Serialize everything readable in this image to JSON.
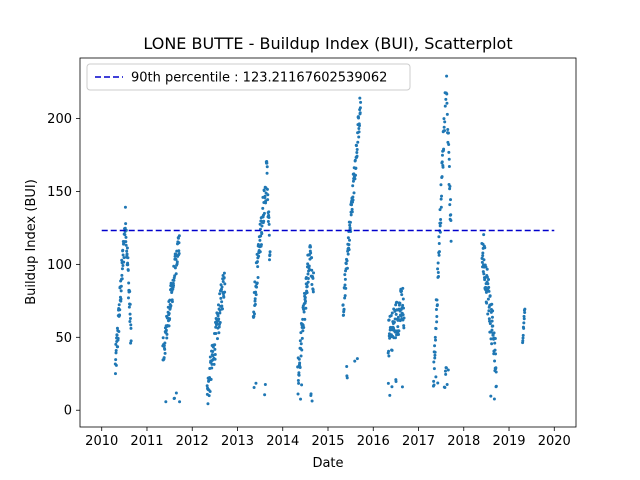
{
  "chart_data": {
    "type": "scatter",
    "title": "LONE BUTTE - Buildup Index (BUI), Scatterplot",
    "xlabel": "Date",
    "ylabel": "Buildup Index (BUI)",
    "xlim": [
      2009.52,
      2020.48
    ],
    "ylim": [
      -11.5,
      241.5
    ],
    "x_ticks": [
      2010,
      2011,
      2012,
      2013,
      2014,
      2015,
      2016,
      2017,
      2018,
      2019,
      2020
    ],
    "y_ticks": [
      0,
      50,
      100,
      150,
      200
    ],
    "grid": false,
    "legend_position": "top-left",
    "colors": {
      "points": "#1f77b4",
      "reference_line": "#0000cc"
    },
    "reference_line": {
      "label": "90th percentile : 123.21167602539062",
      "value": 123.21167602539062,
      "style": "dashed"
    },
    "seasons": [
      {
        "x_start": 2010.3,
        "x_end": 2010.65,
        "start": 28,
        "end": 50,
        "peak": 130,
        "peak_at": 0.65,
        "spread": 12,
        "n": 90
      },
      {
        "x_start": 2011.35,
        "x_end": 2011.72,
        "start": 38,
        "end": 118,
        "peak": 118,
        "peak_at": 1.0,
        "spread": 10,
        "n": 90,
        "low": 2
      },
      {
        "x_start": 2012.33,
        "x_end": 2012.72,
        "start": 10,
        "end": 92,
        "peak": 92,
        "peak_at": 1.0,
        "spread": 12,
        "n": 90
      },
      {
        "x_start": 2013.35,
        "x_end": 2013.72,
        "start": 70,
        "end": 100,
        "peak": 164,
        "peak_at": 0.82,
        "spread": 12,
        "n": 90,
        "low": 5
      },
      {
        "x_start": 2014.33,
        "x_end": 2014.68,
        "start": 20,
        "end": 85,
        "peak": 108,
        "peak_at": 0.75,
        "spread": 12,
        "n": 90,
        "low": 3
      },
      {
        "x_start": 2015.33,
        "x_end": 2015.72,
        "start": 70,
        "end": 205,
        "peak": 207,
        "peak_at": 0.97,
        "spread": 10,
        "n": 95,
        "low": 22
      },
      {
        "x_start": 2016.33,
        "x_end": 2016.68,
        "start": 48,
        "end": 55,
        "peak": 74,
        "peak_at": 0.95,
        "spread": 14,
        "n": 90,
        "low": 7
      },
      {
        "x_start": 2017.33,
        "x_end": 2017.72,
        "start": 18,
        "end": 120,
        "peak": 230,
        "peak_at": 0.72,
        "spread": 12,
        "n": 95,
        "low": 15
      },
      {
        "x_start": 2018.4,
        "x_end": 2018.72,
        "start": 100,
        "end": 30,
        "peak": 112,
        "peak_at": 0.05,
        "spread": 16,
        "n": 90,
        "low": 5
      },
      {
        "x_start": 2019.3,
        "x_end": 2019.35,
        "start": 47,
        "end": 70,
        "peak": 70,
        "peak_at": 1.0,
        "spread": 3,
        "n": 12
      }
    ]
  }
}
